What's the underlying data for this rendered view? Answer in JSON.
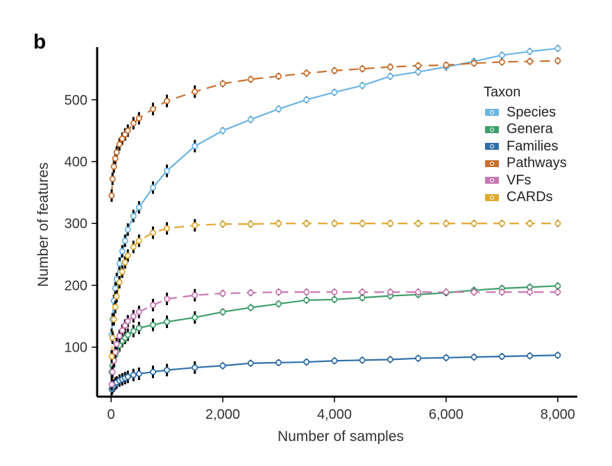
{
  "panel_label": "b",
  "chart_data": {
    "type": "line",
    "xlabel": "Number of samples",
    "ylabel": "Number of features",
    "xlim": [
      -250,
      8350
    ],
    "ylim": [
      20,
      585
    ],
    "xticks": [
      0,
      2000,
      4000,
      6000,
      8000
    ],
    "xtick_labels": [
      "0",
      "2,000",
      "4,000",
      "6,000",
      "8,000"
    ],
    "yticks": [
      100,
      200,
      300,
      400,
      500
    ],
    "ytick_labels": [
      "100",
      "200",
      "300",
      "400",
      "500"
    ],
    "grid": false,
    "legend_title": "Taxon",
    "legend_position": "right",
    "series": [
      {
        "name": "Species",
        "color": "#6bb4e3",
        "dash": "solid",
        "x": [
          10,
          25,
          50,
          75,
          100,
          150,
          200,
          250,
          300,
          400,
          500,
          750,
          1000,
          1500,
          2000,
          2500,
          3000,
          3500,
          4000,
          4500,
          5000,
          5500,
          6000,
          6500,
          7000,
          7500,
          8000
        ],
        "y": [
          120,
          145,
          175,
          195,
          210,
          235,
          255,
          272,
          290,
          312,
          326,
          358,
          385,
          425,
          450,
          468,
          485,
          500,
          512,
          523,
          538,
          545,
          553,
          562,
          572,
          578,
          583
        ]
      },
      {
        "name": "Genera",
        "color": "#3e9e6a",
        "dash": "solid",
        "x": [
          10,
          25,
          50,
          75,
          100,
          150,
          200,
          250,
          300,
          400,
          500,
          750,
          1000,
          1500,
          2000,
          2500,
          3000,
          3500,
          4000,
          4500,
          5000,
          5500,
          6000,
          6500,
          7000,
          7500,
          8000
        ],
        "y": [
          60,
          70,
          80,
          88,
          94,
          103,
          110,
          115,
          120,
          126,
          131,
          136,
          141,
          148,
          157,
          164,
          170,
          176,
          177,
          180,
          183,
          185,
          188,
          192,
          195,
          197,
          199
        ]
      },
      {
        "name": "Families",
        "color": "#2f6fa8",
        "dash": "solid",
        "x": [
          10,
          25,
          50,
          75,
          100,
          150,
          200,
          250,
          300,
          400,
          500,
          750,
          1000,
          1500,
          2000,
          2500,
          3000,
          3500,
          4000,
          4500,
          5000,
          5500,
          6000,
          6500,
          7000,
          7500,
          8000
        ],
        "y": [
          32,
          35,
          38,
          41,
          43,
          46,
          48,
          50,
          52,
          55,
          57,
          60,
          63,
          67,
          70,
          74,
          75,
          76,
          78,
          79,
          80,
          82,
          83,
          84,
          85,
          86,
          87
        ]
      },
      {
        "name": "Pathways",
        "color": "#c8702f",
        "dash": "dashed",
        "x": [
          10,
          25,
          50,
          75,
          100,
          150,
          200,
          250,
          300,
          400,
          500,
          750,
          1000,
          1500,
          2000,
          2500,
          3000,
          3500,
          4000,
          4500,
          5000,
          5500,
          6000,
          6500,
          7000,
          7500,
          8000
        ],
        "y": [
          345,
          372,
          392,
          405,
          415,
          428,
          437,
          444,
          450,
          462,
          470,
          485,
          498,
          513,
          526,
          533,
          538,
          543,
          547,
          550,
          553,
          555,
          556,
          559,
          561,
          562,
          563
        ]
      },
      {
        "name": "VFs",
        "color": "#c778b3",
        "dash": "dashed",
        "x": [
          10,
          25,
          50,
          75,
          100,
          150,
          200,
          250,
          300,
          400,
          500,
          750,
          1000,
          1500,
          2000,
          2500,
          3000,
          3500,
          4000,
          4500,
          5000,
          5500,
          6000,
          6500,
          7000,
          7500,
          8000
        ],
        "y": [
          40,
          60,
          78,
          92,
          105,
          118,
          127,
          135,
          142,
          150,
          157,
          168,
          178,
          184,
          187,
          188,
          189,
          189,
          189,
          189,
          189,
          189,
          189,
          189,
          189,
          189,
          189
        ]
      },
      {
        "name": "CARDs",
        "color": "#e0a830",
        "dash": "dashed",
        "x": [
          10,
          25,
          50,
          75,
          100,
          150,
          200,
          250,
          300,
          400,
          500,
          750,
          1000,
          1500,
          2000,
          2500,
          3000,
          3500,
          4000,
          4500,
          5000,
          5500,
          6000,
          6500,
          7000,
          7500,
          8000
        ],
        "y": [
          85,
          115,
          145,
          165,
          182,
          205,
          222,
          237,
          248,
          262,
          272,
          285,
          292,
          297,
          299,
          299,
          300,
          300,
          300,
          300,
          300,
          300,
          300,
          300,
          300,
          300,
          300
        ]
      }
    ]
  }
}
